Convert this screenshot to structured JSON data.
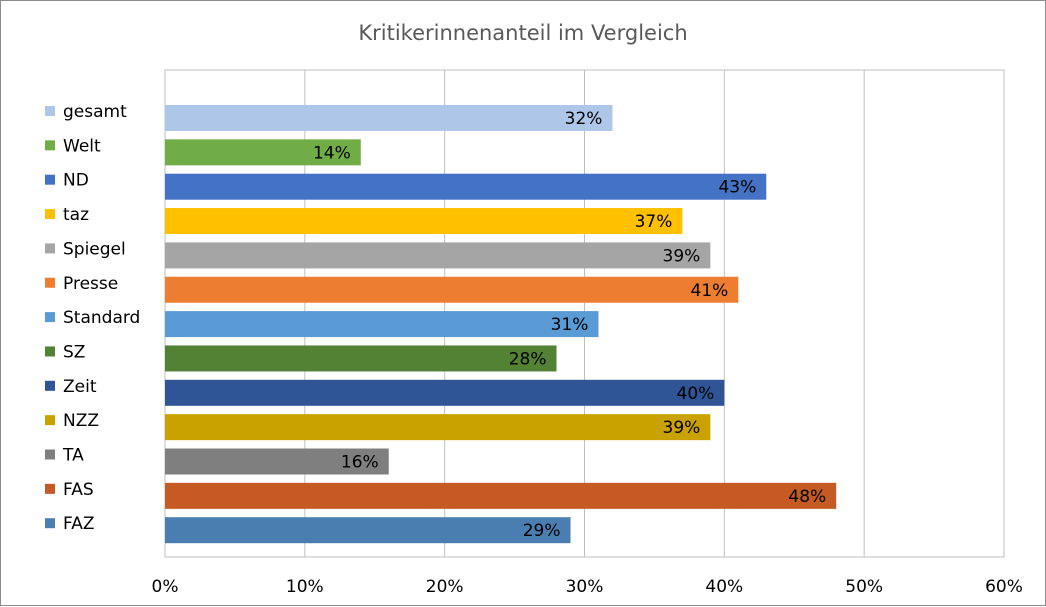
{
  "chart_data": {
    "type": "bar",
    "orientation": "horizontal",
    "title": "Kritikerinnenanteil im Vergleich",
    "xlabel": "",
    "ylabel": "",
    "xlim": [
      0,
      0.6
    ],
    "x_ticks": [
      "0%",
      "10%",
      "20%",
      "30%",
      "40%",
      "50%",
      "60%"
    ],
    "grid": "vertical",
    "legend_position": "left",
    "categories": [
      "gesamt",
      "Welt",
      "ND",
      "taz",
      "Spiegel",
      "Presse",
      "Standard",
      "SZ",
      "Zeit",
      "NZZ",
      "TA",
      "FAS",
      "FAZ"
    ],
    "values": [
      0.32,
      0.14,
      0.43,
      0.37,
      0.39,
      0.41,
      0.31,
      0.28,
      0.4,
      0.39,
      0.16,
      0.48,
      0.29
    ],
    "data_labels": [
      "32%",
      "14%",
      "43%",
      "37%",
      "39%",
      "41%",
      "31%",
      "28%",
      "40%",
      "39%",
      "16%",
      "48%",
      "29%"
    ],
    "colors": [
      "#aec6e8",
      "#70ad47",
      "#4472c4",
      "#ffc000",
      "#a5a5a5",
      "#ed7d31",
      "#5b9bd5",
      "#548235",
      "#2f5597",
      "#c9a200",
      "#7f7f7f",
      "#c55a24",
      "#4a7eb0"
    ]
  }
}
